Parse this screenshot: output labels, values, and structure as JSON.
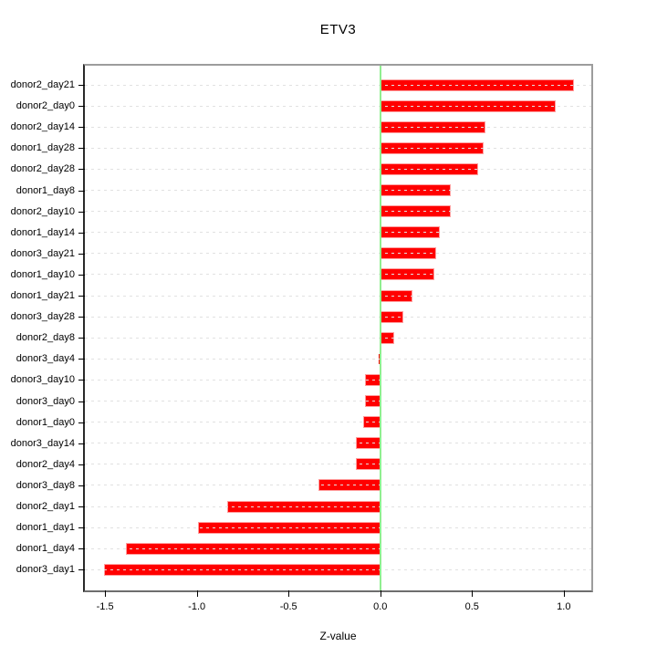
{
  "chart_data": {
    "type": "bar",
    "orientation": "horizontal",
    "title": "ETV3",
    "xlabel": "Z-value",
    "ylabel": "",
    "categories": [
      "donor2_day21",
      "donor2_day0",
      "donor2_day14",
      "donor1_day28",
      "donor2_day28",
      "donor1_day8",
      "donor2_day10",
      "donor1_day14",
      "donor3_day21",
      "donor1_day10",
      "donor1_day21",
      "donor3_day28",
      "donor2_day8",
      "donor3_day4",
      "donor3_day10",
      "donor3_day0",
      "donor1_day0",
      "donor3_day14",
      "donor2_day4",
      "donor3_day8",
      "donor2_day1",
      "donor1_day1",
      "donor1_day4",
      "donor3_day1"
    ],
    "values": [
      1.05,
      0.95,
      0.57,
      0.56,
      0.53,
      0.38,
      0.38,
      0.32,
      0.3,
      0.29,
      0.17,
      0.12,
      0.07,
      -0.01,
      -0.08,
      -0.08,
      -0.09,
      -0.13,
      -0.13,
      -0.33,
      -0.83,
      -0.99,
      -1.38,
      -1.5
    ],
    "xlim": [
      -1.61,
      1.15
    ],
    "x_ticks": [
      -1.5,
      -1.0,
      -0.5,
      0.0,
      0.5,
      1.0
    ],
    "grid": "dotted-horizontal-per-row",
    "legend": "none",
    "colors": {
      "bar": "#ff0000",
      "bar_border": "#ff9e9e",
      "zero_line": "#90ee90",
      "gridline": "#e1e1e1",
      "axis_text": "#000000",
      "background": "#ffffff"
    }
  }
}
